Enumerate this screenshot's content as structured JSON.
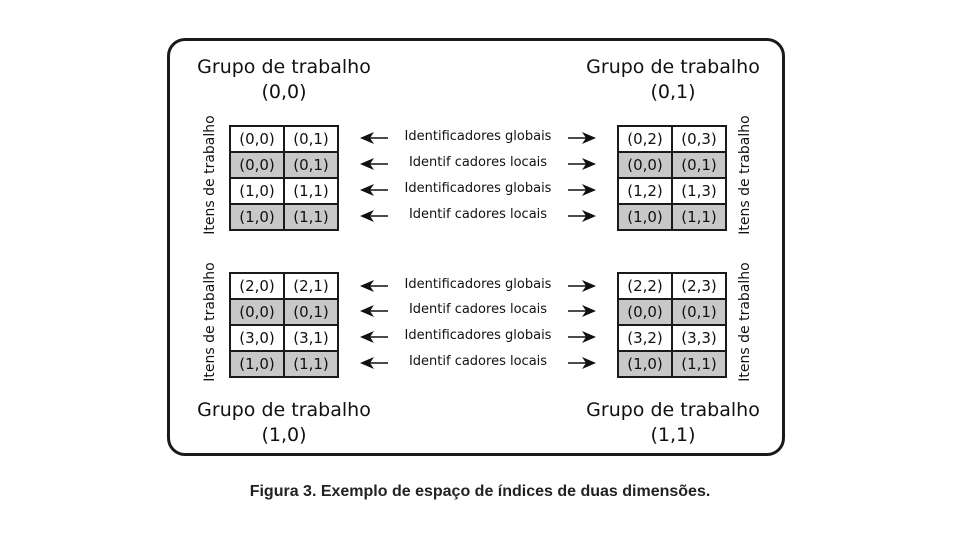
{
  "groups": {
    "g00": {
      "title": "Grupo de trabalho",
      "index": "(0,0)"
    },
    "g01": {
      "title": "Grupo de trabalho",
      "index": "(0,1)"
    },
    "g10": {
      "title": "Grupo de trabalho",
      "index": "(1,0)"
    },
    "g11": {
      "title": "Grupo de trabalho",
      "index": "(1,1)"
    }
  },
  "items_label": "Itens de trabalho",
  "global_label": "Identificadores globais",
  "local_label": "Identif cadores locais",
  "grids": {
    "g00": [
      [
        "(0,0)",
        "(0,1)"
      ],
      [
        "(0,0)",
        "(0,1)"
      ],
      [
        "(1,0)",
        "(1,1)"
      ],
      [
        "(1,0)",
        "(1,1)"
      ]
    ],
    "g01": [
      [
        "(0,2)",
        "(0,3)"
      ],
      [
        "(0,0)",
        "(0,1)"
      ],
      [
        "(1,2)",
        "(1,3)"
      ],
      [
        "(1,0)",
        "(1,1)"
      ]
    ],
    "g10": [
      [
        "(2,0)",
        "(2,1)"
      ],
      [
        "(0,0)",
        "(0,1)"
      ],
      [
        "(3,0)",
        "(3,1)"
      ],
      [
        "(1,0)",
        "(1,1)"
      ]
    ],
    "g11": [
      [
        "(2,2)",
        "(2,3)"
      ],
      [
        "(0,0)",
        "(0,1)"
      ],
      [
        "(3,2)",
        "(3,3)"
      ],
      [
        "(1,0)",
        "(1,1)"
      ]
    ]
  },
  "caption": "Figura 3. Exemplo de espaço de índices de duas dimensões."
}
